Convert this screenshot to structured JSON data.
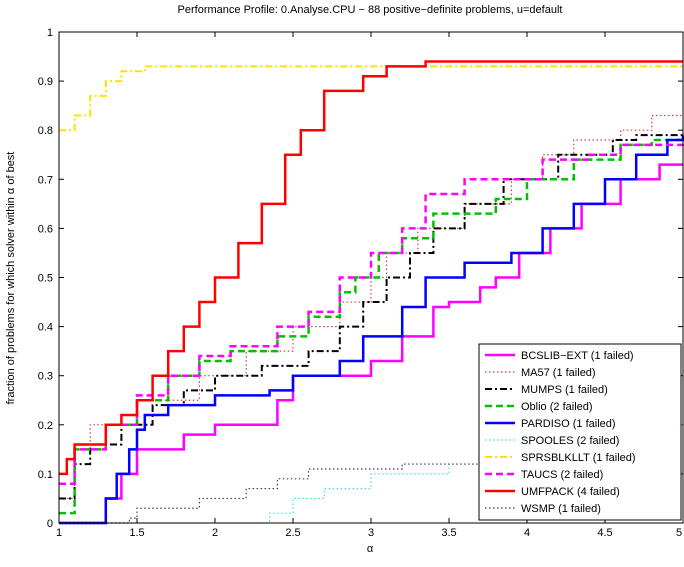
{
  "chart_data": {
    "type": "line",
    "drawstyle": "steps-post",
    "title": "Performance Profile: 0.Analyse.CPU − 88 positive−definite problems, u=default",
    "x_label": "α",
    "y_label": "fraction of problems for which solver within α of best",
    "xlim": [
      1,
      5
    ],
    "ylim": [
      0,
      1
    ],
    "xticks": [
      1,
      1.5,
      2,
      2.5,
      3,
      3.5,
      4,
      4.5,
      5
    ],
    "yticks": [
      0,
      0.1,
      0.2,
      0.3,
      0.4,
      0.5,
      0.6,
      0.7,
      0.8,
      0.9,
      1
    ],
    "grid": false,
    "legend": "lower right",
    "series": [
      {
        "name": "BCSLIB−EXT (1 failed)",
        "color": "#ff00ff",
        "dash": "solid",
        "x": [
          1,
          1.2,
          1.3,
          1.4,
          1.5,
          1.8,
          2.0,
          2.4,
          2.5,
          3.0,
          3.2,
          3.4,
          3.5,
          3.7,
          3.8,
          3.95,
          4.15,
          4.35,
          4.6,
          4.85,
          5
        ],
        "values": [
          0,
          0,
          0.05,
          0.1,
          0.15,
          0.18,
          0.2,
          0.25,
          0.3,
          0.33,
          0.38,
          0.44,
          0.45,
          0.48,
          0.5,
          0.55,
          0.6,
          0.65,
          0.7,
          0.73,
          0.73
        ]
      },
      {
        "name": "MA57 (1 failed)",
        "color": "#d04040",
        "dash": "dot",
        "x": [
          1,
          1.1,
          1.2,
          1.5,
          1.9,
          2.2,
          2.5,
          2.8,
          3.0,
          3.1,
          3.3,
          3.6,
          3.9,
          4.1,
          4.3,
          4.6,
          4.8,
          5
        ],
        "values": [
          0.05,
          0.15,
          0.2,
          0.25,
          0.3,
          0.35,
          0.4,
          0.45,
          0.5,
          0.55,
          0.6,
          0.65,
          0.7,
          0.75,
          0.78,
          0.8,
          0.83,
          0.83
        ]
      },
      {
        "name": "MUMPS (1 failed)",
        "color": "#000000",
        "dash": "dashdot",
        "x": [
          1,
          1.1,
          1.2,
          1.4,
          1.6,
          1.8,
          2.0,
          2.3,
          2.6,
          2.8,
          2.95,
          3.1,
          3.25,
          3.4,
          3.6,
          3.85,
          4.2,
          4.55,
          4.7,
          5
        ],
        "values": [
          0.05,
          0.12,
          0.16,
          0.2,
          0.24,
          0.27,
          0.3,
          0.32,
          0.35,
          0.4,
          0.45,
          0.5,
          0.55,
          0.6,
          0.65,
          0.7,
          0.75,
          0.78,
          0.79,
          0.79
        ]
      },
      {
        "name": "Oblio (2 failed)",
        "color": "#00c000",
        "dash": "dash",
        "x": [
          1,
          1.1,
          1.3,
          1.5,
          1.7,
          1.9,
          2.1,
          2.4,
          2.6,
          2.8,
          2.9,
          3.05,
          3.2,
          3.4,
          3.8,
          4.0,
          4.3,
          4.6,
          4.8,
          5
        ],
        "values": [
          0.02,
          0.15,
          0.2,
          0.25,
          0.3,
          0.33,
          0.35,
          0.38,
          0.42,
          0.47,
          0.5,
          0.55,
          0.58,
          0.63,
          0.66,
          0.7,
          0.74,
          0.77,
          0.78,
          0.78
        ]
      },
      {
        "name": "PARDISO (1 failed)",
        "color": "#0000ff",
        "dash": "solid",
        "x": [
          1,
          1.3,
          1.37,
          1.45,
          1.5,
          1.55,
          1.7,
          2.0,
          2.35,
          2.5,
          2.8,
          2.95,
          3.2,
          3.35,
          3.6,
          3.9,
          4.1,
          4.3,
          4.5,
          4.7,
          4.9,
          5
        ],
        "values": [
          0,
          0.05,
          0.1,
          0.15,
          0.19,
          0.22,
          0.24,
          0.26,
          0.27,
          0.3,
          0.33,
          0.38,
          0.44,
          0.5,
          0.53,
          0.55,
          0.6,
          0.65,
          0.7,
          0.75,
          0.78,
          0.79
        ]
      },
      {
        "name": "SPOOLES (2 failed)",
        "color": "#40d8e0",
        "dash": "dot",
        "x": [
          1,
          2.35,
          2.5,
          2.7,
          3.0,
          3.5,
          4.5,
          4.8,
          5
        ],
        "values": [
          0,
          0.02,
          0.05,
          0.07,
          0.1,
          0.12,
          0.17,
          0.2,
          0.2
        ]
      },
      {
        "name": "SPRSBLKLLT (1 failed)",
        "color": "#ffe000",
        "dash": "dashdot",
        "x": [
          1,
          1.1,
          1.2,
          1.3,
          1.4,
          1.55,
          5
        ],
        "values": [
          0.8,
          0.83,
          0.87,
          0.9,
          0.92,
          0.93,
          0.93
        ]
      },
      {
        "name": "TAUCS (2 failed)",
        "color": "#ff00ff",
        "dash": "dash",
        "x": [
          1,
          1.1,
          1.3,
          1.5,
          1.7,
          1.9,
          2.1,
          2.4,
          2.6,
          2.8,
          3.0,
          3.2,
          3.35,
          3.6,
          4.1,
          4.4,
          4.6,
          5
        ],
        "values": [
          0.08,
          0.15,
          0.2,
          0.26,
          0.3,
          0.34,
          0.36,
          0.4,
          0.43,
          0.5,
          0.55,
          0.6,
          0.67,
          0.7,
          0.74,
          0.75,
          0.77,
          0.78
        ]
      },
      {
        "name": "UMFPACK (4 failed)",
        "color": "#ff0000",
        "dash": "solid",
        "x": [
          1,
          1.05,
          1.1,
          1.3,
          1.4,
          1.5,
          1.6,
          1.7,
          1.8,
          1.9,
          2.0,
          2.15,
          2.3,
          2.45,
          2.55,
          2.7,
          2.95,
          3.1,
          3.35,
          5
        ],
        "values": [
          0.1,
          0.13,
          0.16,
          0.2,
          0.22,
          0.25,
          0.3,
          0.35,
          0.4,
          0.45,
          0.5,
          0.57,
          0.65,
          0.75,
          0.8,
          0.88,
          0.91,
          0.93,
          0.94,
          0.94
        ]
      },
      {
        "name": "WSMP (1 failed)",
        "color": "#404040",
        "dash": "dot",
        "x": [
          1,
          1.45,
          1.5,
          1.9,
          2.2,
          2.4,
          2.6,
          3.2,
          4.0,
          4.8,
          5
        ],
        "values": [
          0,
          0.01,
          0.03,
          0.05,
          0.07,
          0.09,
          0.11,
          0.12,
          0.15,
          0.18,
          0.18
        ]
      }
    ]
  }
}
